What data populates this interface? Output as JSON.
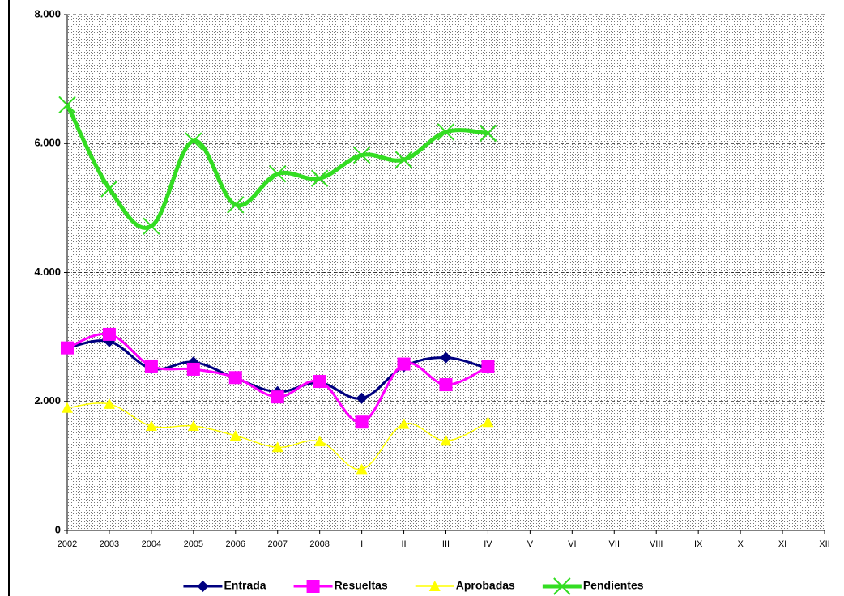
{
  "chart_data": {
    "type": "line",
    "categories": [
      "2002",
      "2003",
      "2004",
      "2005",
      "2006",
      "2007",
      "2008",
      "I",
      "II",
      "III",
      "IV",
      "V",
      "VI",
      "VII",
      "VIII",
      "IX",
      "X",
      "XI",
      "XII"
    ],
    "series": [
      {
        "name": "Entrada",
        "color": "#000080",
        "marker": "diamond",
        "width": 3,
        "values": [
          2830,
          2930,
          2510,
          2610,
          2360,
          2150,
          2290,
          2050,
          2540,
          2680,
          2510,
          null,
          null,
          null,
          null,
          null,
          null,
          null,
          null
        ]
      },
      {
        "name": "Resueltas",
        "color": "#ff00ff",
        "marker": "square",
        "width": 3,
        "values": [
          2830,
          3040,
          2550,
          2500,
          2370,
          2070,
          2310,
          1680,
          2580,
          2260,
          2540,
          null,
          null,
          null,
          null,
          null,
          null,
          null,
          null
        ]
      },
      {
        "name": "Aprobadas",
        "color": "#ffff00",
        "marker": "triangle",
        "width": 1.5,
        "values": [
          1900,
          1960,
          1620,
          1620,
          1470,
          1290,
          1380,
          950,
          1650,
          1390,
          1680,
          null,
          null,
          null,
          null,
          null,
          null,
          null,
          null
        ]
      },
      {
        "name": "Pendientes",
        "color": "#33dd22",
        "marker": "x",
        "width": 5,
        "values": [
          6600,
          5300,
          4720,
          6040,
          5050,
          5530,
          5460,
          5820,
          5750,
          6180,
          6160,
          null,
          null,
          null,
          null,
          null,
          null,
          null,
          null
        ]
      }
    ],
    "ylim": [
      0,
      8000
    ],
    "yticks": [
      0,
      {
        "value": 2000,
        "label": "2.000"
      },
      {
        "value": 4000,
        "label": "4.000"
      },
      {
        "value": 6000,
        "label": "6.000"
      },
      {
        "value": 8000,
        "label": "8.000"
      }
    ],
    "grid": true,
    "legend": "bottom"
  }
}
